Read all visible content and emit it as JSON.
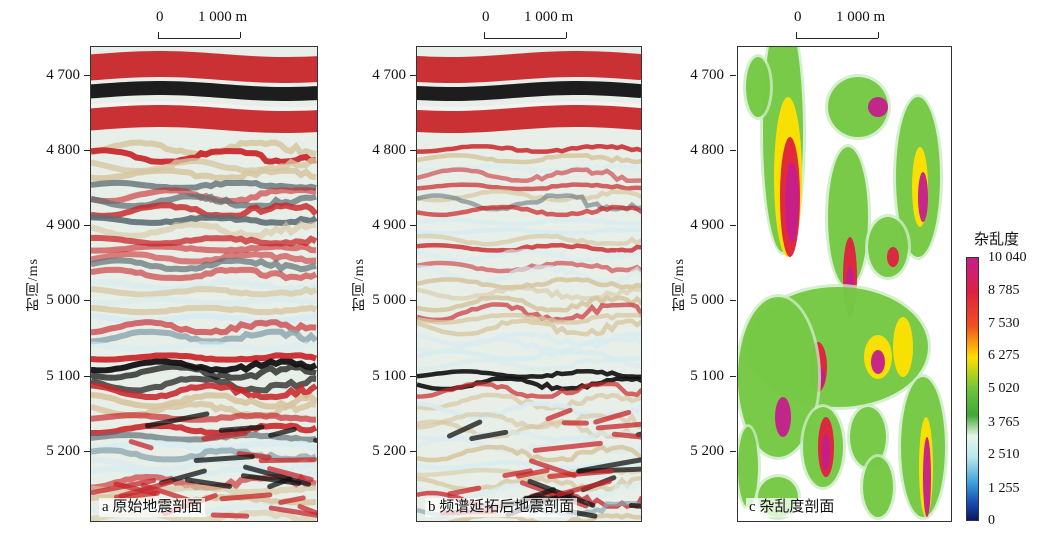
{
  "panels": [
    {
      "caption": "a 原始地震剖面",
      "scale_zero": "0",
      "scale_distance": "1 000 m",
      "axis_title": "时间/ms",
      "ticks": [
        "4 700",
        "4 800",
        "4 900",
        "5 000",
        "5 100",
        "5 200"
      ]
    },
    {
      "caption": "b 频谱延拓后地震剖面",
      "scale_zero": "0",
      "scale_distance": "1 000 m",
      "axis_title": "时间/ms",
      "ticks": [
        "4 700",
        "4 800",
        "4 900",
        "5 000",
        "5 100",
        "5 200"
      ]
    },
    {
      "caption": "c 杂乱度剖面",
      "scale_zero": "0",
      "scale_distance": "1 000 m",
      "axis_title": "时间/ms",
      "ticks": [
        "4 700",
        "4 800",
        "4 900",
        "5 000",
        "5 100",
        "5 200"
      ]
    }
  ],
  "legend": {
    "title": "杂乱度",
    "labels": [
      "10 040",
      "8 785",
      "7 530",
      "6 275",
      "5 020",
      "3 765",
      "2 510",
      "1 255",
      "0"
    ],
    "colors": [
      "#c51e8c",
      "#e02040",
      "#f05020",
      "#ffe000",
      "#6ec53a",
      "#40a838",
      "#e6f6e6",
      "#b9e6ef",
      "#3aa0d8",
      "#1a50b8",
      "#0b1560"
    ]
  },
  "seismic_palette": {
    "peak": "#c8262a",
    "trough": "#111111",
    "light": "#d8ecf0",
    "tan": "#d6c6a0"
  }
}
